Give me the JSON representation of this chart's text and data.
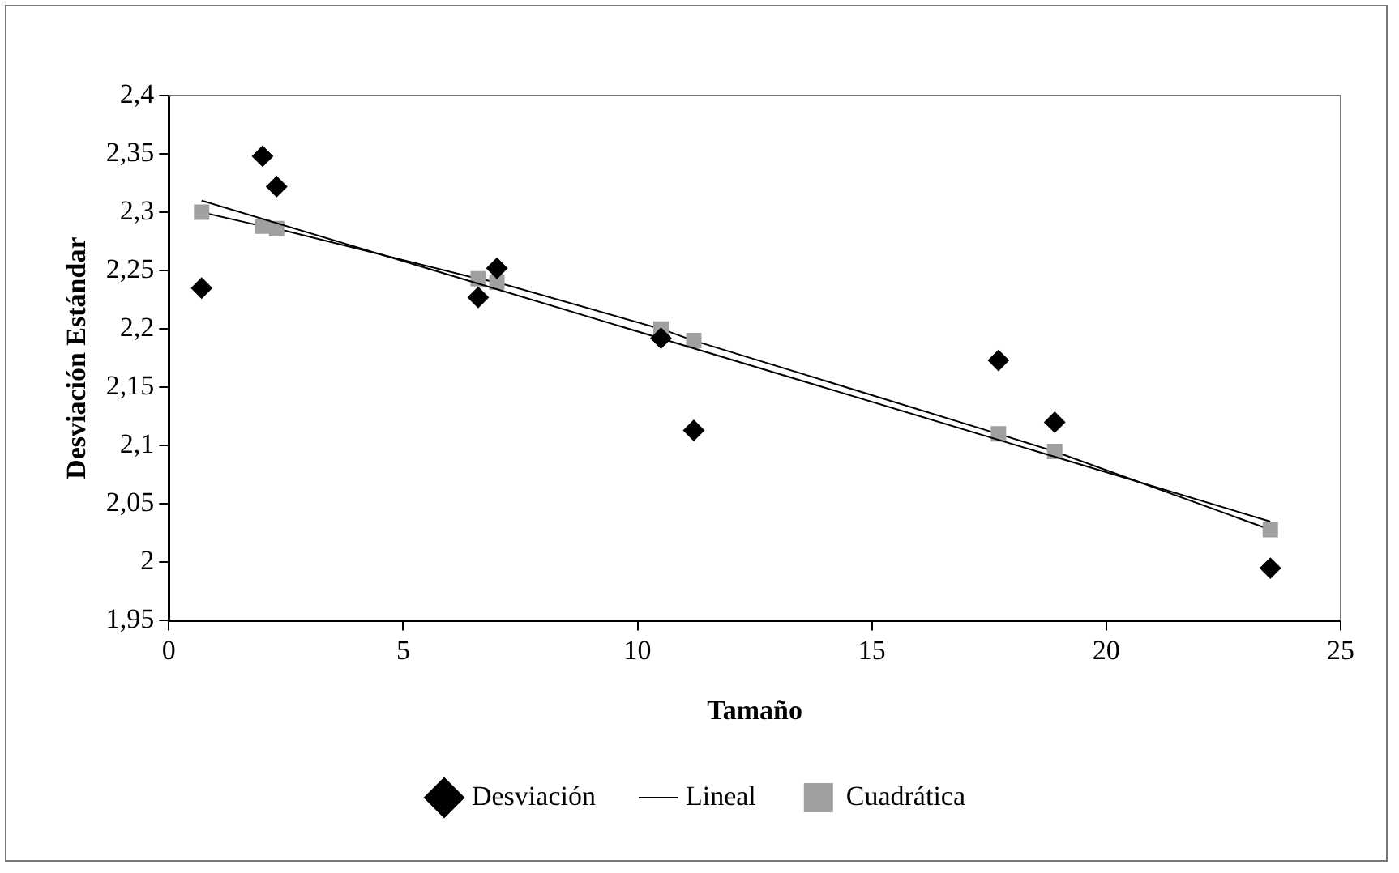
{
  "chart_data": {
    "type": "scatter",
    "xlabel": "Tamaño",
    "ylabel": "Desviación Estándar",
    "xlim": [
      0,
      25
    ],
    "xticks": [
      0,
      5,
      10,
      15,
      20,
      25
    ],
    "ylim": [
      1.95,
      2.4
    ],
    "yticks": [
      {
        "value": 1.95,
        "label": "1,95"
      },
      {
        "value": 2,
        "label": "2"
      },
      {
        "value": 2.05,
        "label": "2,05"
      },
      {
        "value": 2.1,
        "label": "2,1"
      },
      {
        "value": 2.15,
        "label": "2,15"
      },
      {
        "value": 2.2,
        "label": "2,2"
      },
      {
        "value": 2.25,
        "label": "2,25"
      },
      {
        "value": 2.3,
        "label": "2,3"
      },
      {
        "value": 2.35,
        "label": "2,35"
      },
      {
        "value": 2.4,
        "label": "2,4"
      }
    ],
    "grid": false,
    "legend": "bottom",
    "series": [
      {
        "name": "Desviación",
        "type": "scatter",
        "marker": "diamond",
        "color": "#000000",
        "x": [
          0.7,
          2.0,
          2.3,
          6.6,
          7.0,
          10.5,
          11.2,
          17.7,
          18.9,
          23.5
        ],
        "values": [
          2.235,
          2.348,
          2.322,
          2.227,
          2.252,
          2.192,
          2.113,
          2.173,
          2.12,
          1.995
        ]
      },
      {
        "name": "Lineal",
        "type": "line",
        "marker": "none",
        "color": "#000000",
        "x": [
          0.7,
          23.5
        ],
        "values": [
          2.31,
          2.035
        ]
      },
      {
        "name": "Cuadrática",
        "type": "line",
        "marker": "square",
        "color": "#a0a0a0",
        "x": [
          0.7,
          2.0,
          2.3,
          6.6,
          7.0,
          10.5,
          11.2,
          17.7,
          18.9,
          23.5
        ],
        "values": [
          2.3,
          2.288,
          2.286,
          2.243,
          2.24,
          2.2,
          2.19,
          2.11,
          2.095,
          2.028
        ]
      }
    ]
  }
}
